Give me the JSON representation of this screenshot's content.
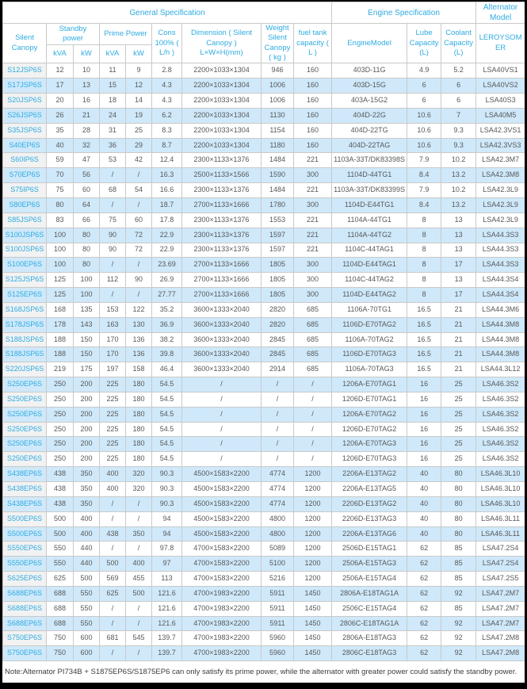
{
  "colors": {
    "accent_cyan": "#2fabe1",
    "alt_row_bg": "#cfe9fa",
    "model_col_bg": "#f2f2f2",
    "border_gray": "#c9c9c9",
    "text_gray": "#57585a"
  },
  "table": {
    "groups": {
      "general": "General Specification",
      "engine": "Engine Specification",
      "alternator": "Alternator Model"
    },
    "headers": {
      "silent_canopy": "Silent Canopy",
      "standby_power": "Standby power",
      "prime_power": "Prime Power",
      "standby_kva": "kVA",
      "standby_kw": "kW",
      "prime_kva": "kVA",
      "prime_kw": "kW",
      "cons": "Cons 100% ( L/h )",
      "dimension": "Dimension ( Silent Canopy ) L×W×H(mm)",
      "weight": "Weight Silent Canopy ( kg )",
      "fuel_tank": "fuel tank capacity ( L )",
      "engine_model": "EngineModel",
      "lube": "Lube Capacity (L)",
      "coolant": "Coolant Capacity (L)",
      "leroysomer": "LEROYSOMER"
    },
    "rows": [
      [
        "S12JSP6S",
        "12",
        "10",
        "11",
        "9",
        "2.8",
        "2200×1033×1304",
        "946",
        "160",
        "403D-11G",
        "4.9",
        "5.2",
        "LSA40VS1"
      ],
      [
        "S17JSP6S",
        "17",
        "13",
        "15",
        "12",
        "4.3",
        "2200×1033×1304",
        "1006",
        "160",
        "403D-15G",
        "6",
        "6",
        "LSA40VS2"
      ],
      [
        "S20JSP6S",
        "20",
        "16",
        "18",
        "14",
        "4.3",
        "2200×1033×1304",
        "1006",
        "160",
        "403A-15G2",
        "6",
        "6",
        "LSA40S3"
      ],
      [
        "S26JSP6S",
        "26",
        "21",
        "24",
        "19",
        "6.2",
        "2200×1033×1304",
        "1130",
        "160",
        "404D-22G",
        "10.6",
        "7",
        "LSA40M5"
      ],
      [
        "S35JSP6S",
        "35",
        "28",
        "31",
        "25",
        "8.3",
        "2200×1033×1304",
        "1154",
        "160",
        "404D-22TG",
        "10.6",
        "9.3",
        "LSA42.3VS1"
      ],
      [
        "S40EP6S",
        "40",
        "32",
        "36",
        "29",
        "8.7",
        "2200×1033×1304",
        "1180",
        "160",
        "404D-22TAG",
        "10.6",
        "9.3",
        "LSA42.3VS3"
      ],
      [
        "S60IP6S",
        "59",
        "47",
        "53",
        "42",
        "12.4",
        "2300×1133×1376",
        "1484",
        "221",
        "1103A-33T/DK83398S",
        "7.9",
        "10.2",
        "LSA42.3M7"
      ],
      [
        "S70EP6S",
        "70",
        "56",
        "/",
        "/",
        "16.3",
        "2500×1133×1566",
        "1590",
        "300",
        "1104D-44TG1",
        "8.4",
        "13.2",
        "LSA42.3M8"
      ],
      [
        "S75IP6S",
        "75",
        "60",
        "68",
        "54",
        "16.6",
        "2300×1133×1376",
        "1484",
        "221",
        "1103A-33T/DK83399S",
        "7.9",
        "10.2",
        "LSA42.3L9"
      ],
      [
        "S80EP6S",
        "80",
        "64",
        "/",
        "/",
        "18.7",
        "2700×1133×1666",
        "1780",
        "300",
        "1104D-E44TG1",
        "8.4",
        "13.2",
        "LSA42.3L9"
      ],
      [
        "S85JSP6S",
        "83",
        "66",
        "75",
        "60",
        "17.8",
        "2300×1133×1376",
        "1553",
        "221",
        "1104A-44TG1",
        "8",
        "13",
        "LSA42.3L9"
      ],
      [
        "S100JSP6S",
        "100",
        "80",
        "90",
        "72",
        "22.9",
        "2300×1133×1376",
        "1597",
        "221",
        "1104A-44TG2",
        "8",
        "13",
        "LSA44.3S3"
      ],
      [
        "S100JSP6S",
        "100",
        "80",
        "90",
        "72",
        "22.9",
        "2300×1133×1376",
        "1597",
        "221",
        "1104C-44TAG1",
        "8",
        "13",
        "LSA44.3S3"
      ],
      [
        "S100EP6S",
        "100",
        "80",
        "/",
        "/",
        "23.69",
        "2700×1133×1666",
        "1805",
        "300",
        "1104D-E44TAG1",
        "8",
        "17",
        "LSA44.3S3"
      ],
      [
        "S125JSP6S",
        "125",
        "100",
        "112",
        "90",
        "26.9",
        "2700×1133×1666",
        "1805",
        "300",
        "1104C-44TAG2",
        "8",
        "13",
        "LSA44.3S4"
      ],
      [
        "S125EP6S",
        "125",
        "100",
        "/",
        "/",
        "27.77",
        "2700×1133×1666",
        "1805",
        "300",
        "1104D-E44TAG2",
        "8",
        "17",
        "LSA44.3S4"
      ],
      [
        "S168JSP6S",
        "168",
        "135",
        "153",
        "122",
        "35.2",
        "3600×1333×2040",
        "2820",
        "685",
        "1106A-70TG1",
        "16.5",
        "21",
        "LSA44.3M6"
      ],
      [
        "S178JSP6S",
        "178",
        "143",
        "163",
        "130",
        "36.9",
        "3600×1333×2040",
        "2820",
        "685",
        "1106D-E70TAG2",
        "16.5",
        "21",
        "LSA44.3M8"
      ],
      [
        "S188JSP6S",
        "188",
        "150",
        "170",
        "136",
        "38.2",
        "3600×1333×2040",
        "2845",
        "685",
        "1106A-70TAG2",
        "16.5",
        "21",
        "LSA44.3M8"
      ],
      [
        "S188JSP6S",
        "188",
        "150",
        "170",
        "136",
        "39.8",
        "3600×1333×2040",
        "2845",
        "685",
        "1106D-E70TAG3",
        "16.5",
        "21",
        "LSA44.3M8"
      ],
      [
        "S220JSP6S",
        "219",
        "175",
        "197",
        "158",
        "46.4",
        "3600×1333×2040",
        "2914",
        "685",
        "1106A-70TAG3",
        "16.5",
        "21",
        "LSA44.3L12"
      ],
      [
        "S250EP6S",
        "250",
        "200",
        "225",
        "180",
        "54.5",
        "/",
        "/",
        "/",
        "1206A-E70TAG1",
        "16",
        "25",
        "LSA46.3S2"
      ],
      [
        "S250EP6S",
        "250",
        "200",
        "225",
        "180",
        "54.5",
        "/",
        "/",
        "/",
        "1206D-E70TAG1",
        "16",
        "25",
        "LSA46.3S2"
      ],
      [
        "S250EP6S",
        "250",
        "200",
        "225",
        "180",
        "54.5",
        "/",
        "/",
        "/",
        "1206A-E70TAG2",
        "16",
        "25",
        "LSA46.3S2"
      ],
      [
        "S250EP6S",
        "250",
        "200",
        "225",
        "180",
        "54.5",
        "/",
        "/",
        "/",
        "1206D-E70TAG2",
        "16",
        "25",
        "LSA46.3S2"
      ],
      [
        "S250EP6S",
        "250",
        "200",
        "225",
        "180",
        "54.5",
        "/",
        "/",
        "/",
        "1206A-E70TAG3",
        "16",
        "25",
        "LSA46.3S2"
      ],
      [
        "S250EP6S",
        "250",
        "200",
        "225",
        "180",
        "54.5",
        "/",
        "/",
        "/",
        "1206D-E70TAG3",
        "16",
        "25",
        "LSA46.3S2"
      ],
      [
        "S438EP6S",
        "438",
        "350",
        "400",
        "320",
        "90.3",
        "4500×1583×2200",
        "4774",
        "1200",
        "2206A-E13TAG2",
        "40",
        "80",
        "LSA46.3L10"
      ],
      [
        "S438EP6S",
        "438",
        "350",
        "400",
        "320",
        "90.3",
        "4500×1583×2200",
        "4774",
        "1200",
        "2206A-E13TAG5",
        "40",
        "80",
        "LSA46.3L10"
      ],
      [
        "S438EP6S",
        "438",
        "350",
        "/",
        "/",
        "90.3",
        "4500×1583×2200",
        "4774",
        "1200",
        "2206D-E13TAG2",
        "40",
        "80",
        "LSA46.3L10"
      ],
      [
        "S500EP6S",
        "500",
        "400",
        "/",
        "/",
        "94",
        "4500×1583×2200",
        "4800",
        "1200",
        "2206D-E13TAG3",
        "40",
        "80",
        "LSA46.3L11"
      ],
      [
        "S500EP6S",
        "500",
        "400",
        "438",
        "350",
        "94",
        "4500×1583×2200",
        "4800",
        "1200",
        "2206A-E13TAG6",
        "40",
        "80",
        "LSA46.3L11"
      ],
      [
        "S550EP6S",
        "550",
        "440",
        "/",
        "/",
        "97.8",
        "4700×1583×2200",
        "5089",
        "1200",
        "2506D-E15TAG1",
        "62",
        "85",
        "LSA47.2S4"
      ],
      [
        "S550EP6S",
        "550",
        "440",
        "500",
        "400",
        "97",
        "4700×1583×2200",
        "5100",
        "1200",
        "2506A-E15TAG3",
        "62",
        "85",
        "LSA47.2S4"
      ],
      [
        "S625EP6S",
        "625",
        "500",
        "569",
        "455",
        "113",
        "4700×1583×2200",
        "5216",
        "1200",
        "2506A-E15TAG4",
        "62",
        "85",
        "LSA47.2S5"
      ],
      [
        "S688EP6S",
        "688",
        "550",
        "625",
        "500",
        "121.6",
        "4700×1983×2200",
        "5911",
        "1450",
        "2806A-E18TAG1A",
        "62",
        "92",
        "LSA47.2M7"
      ],
      [
        "S688EP6S",
        "688",
        "550",
        "/",
        "/",
        "121.6",
        "4700×1983×2200",
        "5911",
        "1450",
        "2506C-E15TAG4",
        "62",
        "85",
        "LSA47.2M7"
      ],
      [
        "S688EP6S",
        "688",
        "550",
        "/",
        "/",
        "121.6",
        "4700×1983×2200",
        "5911",
        "1450",
        "2806C-E18TAG1A",
        "62",
        "92",
        "LSA47.2M7"
      ],
      [
        "S750EP6S",
        "750",
        "600",
        "681",
        "545",
        "139.7",
        "4700×1983×2200",
        "5960",
        "1450",
        "2806A-E18TAG3",
        "62",
        "92",
        "LSA47.2M8"
      ],
      [
        "S750EP6S",
        "750",
        "600",
        "/",
        "/",
        "139.7",
        "4700×1983×2200",
        "5960",
        "1450",
        "2806C-E18TAG3",
        "62",
        "92",
        "LSA47.2M8"
      ]
    ]
  },
  "note": "Note:Alternator PI734B + S1875EP6S/S1875EP6 can only satisfy its prime power, while the alternator with greater power could satisfy the standby power."
}
